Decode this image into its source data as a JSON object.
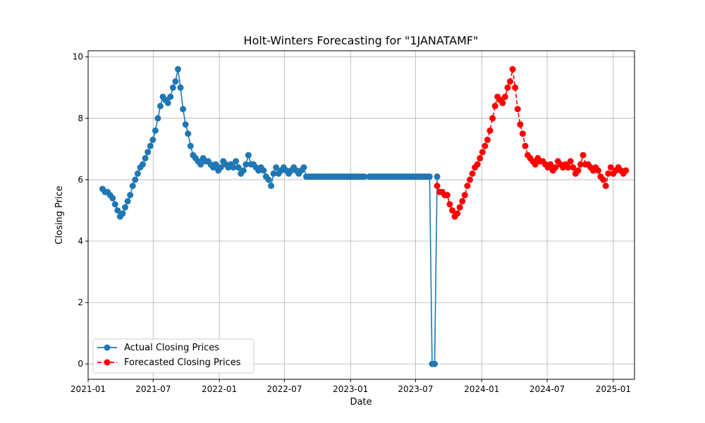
{
  "chart_data": {
    "type": "line",
    "title": "Holt-Winters Forecasting for \"1JANATAMF\"",
    "xlabel": "Date",
    "ylabel": "Closing Price",
    "xlim": [
      "2021-01-01",
      "2025-03-01"
    ],
    "ylim": [
      -0.5,
      10.2
    ],
    "x_ticks": [
      "2021-01-01",
      "2021-07-01",
      "2022-01-01",
      "2022-07-01",
      "2023-01-01",
      "2023-07-01",
      "2024-01-01",
      "2024-07-01",
      "2025-01-01"
    ],
    "x_tick_labels": [
      "2021-01",
      "2021-07",
      "2022-01",
      "2022-07",
      "2023-01",
      "2023-07",
      "2024-01",
      "2024-07",
      "2025-01"
    ],
    "y_ticks": [
      0,
      2,
      4,
      6,
      8,
      10
    ],
    "y_tick_labels": [
      "0",
      "2",
      "4",
      "6",
      "8",
      "10"
    ],
    "grid": true,
    "legend_position": "lower-left",
    "series": [
      {
        "name": "Actual Closing Prices",
        "color": "#1f77b4",
        "linestyle": "solid",
        "marker": "circle",
        "points": [
          [
            "2021-02-10",
            5.7
          ],
          [
            "2021-02-17",
            5.6
          ],
          [
            "2021-02-24",
            5.6
          ],
          [
            "2021-03-03",
            5.5
          ],
          [
            "2021-03-10",
            5.4
          ],
          [
            "2021-03-17",
            5.2
          ],
          [
            "2021-03-24",
            5.0
          ],
          [
            "2021-03-31",
            4.8
          ],
          [
            "2021-04-07",
            4.9
          ],
          [
            "2021-04-14",
            5.1
          ],
          [
            "2021-04-21",
            5.3
          ],
          [
            "2021-04-28",
            5.5
          ],
          [
            "2021-05-05",
            5.8
          ],
          [
            "2021-05-12",
            6.0
          ],
          [
            "2021-05-19",
            6.2
          ],
          [
            "2021-05-26",
            6.4
          ],
          [
            "2021-06-02",
            6.5
          ],
          [
            "2021-06-09",
            6.7
          ],
          [
            "2021-06-16",
            6.9
          ],
          [
            "2021-06-23",
            7.1
          ],
          [
            "2021-06-30",
            7.3
          ],
          [
            "2021-07-07",
            7.6
          ],
          [
            "2021-07-14",
            8.0
          ],
          [
            "2021-07-21",
            8.4
          ],
          [
            "2021-07-28",
            8.7
          ],
          [
            "2021-08-04",
            8.6
          ],
          [
            "2021-08-11",
            8.5
          ],
          [
            "2021-08-18",
            8.7
          ],
          [
            "2021-08-25",
            9.0
          ],
          [
            "2021-09-01",
            9.2
          ],
          [
            "2021-09-08",
            9.6
          ],
          [
            "2021-09-15",
            9.0
          ],
          [
            "2021-09-22",
            8.3
          ],
          [
            "2021-09-29",
            7.8
          ],
          [
            "2021-10-06",
            7.5
          ],
          [
            "2021-10-13",
            7.1
          ],
          [
            "2021-10-20",
            6.8
          ],
          [
            "2021-10-27",
            6.7
          ],
          [
            "2021-11-03",
            6.6
          ],
          [
            "2021-11-10",
            6.5
          ],
          [
            "2021-11-17",
            6.7
          ],
          [
            "2021-11-24",
            6.6
          ],
          [
            "2021-12-01",
            6.6
          ],
          [
            "2021-12-08",
            6.5
          ],
          [
            "2021-12-15",
            6.4
          ],
          [
            "2021-12-22",
            6.5
          ],
          [
            "2021-12-29",
            6.3
          ],
          [
            "2022-01-05",
            6.4
          ],
          [
            "2022-01-12",
            6.6
          ],
          [
            "2022-01-19",
            6.5
          ],
          [
            "2022-01-26",
            6.4
          ],
          [
            "2022-02-02",
            6.5
          ],
          [
            "2022-02-09",
            6.4
          ],
          [
            "2022-02-16",
            6.6
          ],
          [
            "2022-02-23",
            6.4
          ],
          [
            "2022-03-02",
            6.2
          ],
          [
            "2022-03-09",
            6.3
          ],
          [
            "2022-03-16",
            6.5
          ],
          [
            "2022-03-23",
            6.8
          ],
          [
            "2022-03-30",
            6.5
          ],
          [
            "2022-04-06",
            6.5
          ],
          [
            "2022-04-13",
            6.4
          ],
          [
            "2022-04-20",
            6.3
          ],
          [
            "2022-04-27",
            6.4
          ],
          [
            "2022-05-04",
            6.3
          ],
          [
            "2022-05-11",
            6.1
          ],
          [
            "2022-05-18",
            6.0
          ],
          [
            "2022-05-25",
            5.8
          ],
          [
            "2022-06-01",
            6.2
          ],
          [
            "2022-06-08",
            6.4
          ],
          [
            "2022-06-15",
            6.2
          ],
          [
            "2022-06-22",
            6.3
          ],
          [
            "2022-06-29",
            6.4
          ],
          [
            "2022-07-06",
            6.3
          ],
          [
            "2022-07-13",
            6.2
          ],
          [
            "2022-07-20",
            6.3
          ],
          [
            "2022-07-27",
            6.4
          ],
          [
            "2022-08-03",
            6.3
          ],
          [
            "2022-08-10",
            6.2
          ],
          [
            "2022-08-17",
            6.3
          ],
          [
            "2022-08-24",
            6.4
          ],
          [
            "2022-08-31",
            6.1
          ],
          [
            "2022-09-07",
            6.1
          ],
          [
            "2022-09-14",
            6.1
          ],
          [
            "2022-09-21",
            6.1
          ],
          [
            "2022-09-28",
            6.1
          ],
          [
            "2022-10-05",
            6.1
          ],
          [
            "2022-10-12",
            6.1
          ],
          [
            "2022-10-19",
            6.1
          ],
          [
            "2022-10-26",
            6.1
          ],
          [
            "2022-11-02",
            6.1
          ],
          [
            "2022-11-09",
            6.1
          ],
          [
            "2022-11-16",
            6.1
          ],
          [
            "2022-11-23",
            6.1
          ],
          [
            "2022-11-30",
            6.1
          ],
          [
            "2022-12-07",
            6.1
          ],
          [
            "2022-12-14",
            6.1
          ],
          [
            "2022-12-21",
            6.1
          ],
          [
            "2022-12-28",
            6.1
          ],
          [
            "2023-01-04",
            6.1
          ],
          [
            "2023-01-11",
            6.1
          ],
          [
            "2023-01-18",
            6.1
          ],
          [
            "2023-01-25",
            6.1
          ],
          [
            "2023-02-01",
            6.1
          ],
          [
            "2023-02-08",
            6.1
          ],
          [
            "2023-02-22",
            6.1
          ],
          [
            "2023-03-01",
            6.1
          ],
          [
            "2023-03-08",
            6.1
          ],
          [
            "2023-03-15",
            6.1
          ],
          [
            "2023-03-22",
            6.1
          ],
          [
            "2023-03-29",
            6.1
          ],
          [
            "2023-04-05",
            6.1
          ],
          [
            "2023-04-12",
            6.1
          ],
          [
            "2023-04-19",
            6.1
          ],
          [
            "2023-04-26",
            6.1
          ],
          [
            "2023-05-03",
            6.1
          ],
          [
            "2023-05-10",
            6.1
          ],
          [
            "2023-05-17",
            6.1
          ],
          [
            "2023-05-24",
            6.1
          ],
          [
            "2023-05-31",
            6.1
          ],
          [
            "2023-06-07",
            6.1
          ],
          [
            "2023-06-14",
            6.1
          ],
          [
            "2023-06-21",
            6.1
          ],
          [
            "2023-06-28",
            6.1
          ],
          [
            "2023-07-05",
            6.1
          ],
          [
            "2023-07-12",
            6.1
          ],
          [
            "2023-07-19",
            6.1
          ],
          [
            "2023-07-26",
            6.1
          ],
          [
            "2023-08-02",
            6.1
          ],
          [
            "2023-08-09",
            6.1
          ],
          [
            "2023-08-16",
            0.0
          ],
          [
            "2023-08-23",
            0.0
          ],
          [
            "2023-08-30",
            6.1
          ]
        ]
      },
      {
        "name": "Forecasted Closing Prices",
        "color": "#ff0000",
        "linestyle": "dashed",
        "marker": "circle",
        "points": [
          [
            "2023-08-30",
            5.8
          ],
          [
            "2023-09-06",
            5.6
          ],
          [
            "2023-09-13",
            5.6
          ],
          [
            "2023-09-20",
            5.5
          ],
          [
            "2023-09-27",
            5.5
          ],
          [
            "2023-10-04",
            5.2
          ],
          [
            "2023-10-11",
            5.0
          ],
          [
            "2023-10-18",
            4.8
          ],
          [
            "2023-10-25",
            4.9
          ],
          [
            "2023-11-01",
            5.1
          ],
          [
            "2023-11-08",
            5.3
          ],
          [
            "2023-11-15",
            5.5
          ],
          [
            "2023-11-22",
            5.8
          ],
          [
            "2023-11-29",
            6.0
          ],
          [
            "2023-12-06",
            6.2
          ],
          [
            "2023-12-13",
            6.4
          ],
          [
            "2023-12-20",
            6.5
          ],
          [
            "2023-12-27",
            6.7
          ],
          [
            "2024-01-03",
            6.9
          ],
          [
            "2024-01-10",
            7.1
          ],
          [
            "2024-01-17",
            7.3
          ],
          [
            "2024-01-24",
            7.6
          ],
          [
            "2024-01-31",
            8.0
          ],
          [
            "2024-02-07",
            8.4
          ],
          [
            "2024-02-14",
            8.7
          ],
          [
            "2024-02-21",
            8.6
          ],
          [
            "2024-02-28",
            8.5
          ],
          [
            "2024-03-06",
            8.7
          ],
          [
            "2024-03-13",
            9.0
          ],
          [
            "2024-03-20",
            9.2
          ],
          [
            "2024-03-27",
            9.6
          ],
          [
            "2024-04-03",
            9.0
          ],
          [
            "2024-04-10",
            8.3
          ],
          [
            "2024-04-17",
            7.8
          ],
          [
            "2024-04-24",
            7.5
          ],
          [
            "2024-05-01",
            7.1
          ],
          [
            "2024-05-08",
            6.8
          ],
          [
            "2024-05-15",
            6.7
          ],
          [
            "2024-05-22",
            6.6
          ],
          [
            "2024-05-29",
            6.5
          ],
          [
            "2024-06-05",
            6.7
          ],
          [
            "2024-06-12",
            6.6
          ],
          [
            "2024-06-19",
            6.6
          ],
          [
            "2024-06-26",
            6.5
          ],
          [
            "2024-07-03",
            6.4
          ],
          [
            "2024-07-10",
            6.5
          ],
          [
            "2024-07-17",
            6.3
          ],
          [
            "2024-07-24",
            6.4
          ],
          [
            "2024-07-31",
            6.6
          ],
          [
            "2024-08-07",
            6.5
          ],
          [
            "2024-08-14",
            6.4
          ],
          [
            "2024-08-21",
            6.5
          ],
          [
            "2024-08-28",
            6.4
          ],
          [
            "2024-09-04",
            6.6
          ],
          [
            "2024-09-11",
            6.4
          ],
          [
            "2024-09-18",
            6.2
          ],
          [
            "2024-09-25",
            6.3
          ],
          [
            "2024-10-02",
            6.5
          ],
          [
            "2024-10-09",
            6.8
          ],
          [
            "2024-10-16",
            6.5
          ],
          [
            "2024-10-23",
            6.5
          ],
          [
            "2024-10-30",
            6.4
          ],
          [
            "2024-11-06",
            6.3
          ],
          [
            "2024-11-13",
            6.4
          ],
          [
            "2024-11-20",
            6.3
          ],
          [
            "2024-11-27",
            6.1
          ],
          [
            "2024-12-04",
            6.0
          ],
          [
            "2024-12-11",
            5.8
          ],
          [
            "2024-12-18",
            6.2
          ],
          [
            "2024-12-25",
            6.4
          ],
          [
            "2025-01-01",
            6.2
          ],
          [
            "2025-01-08",
            6.3
          ],
          [
            "2025-01-15",
            6.4
          ],
          [
            "2025-01-22",
            6.3
          ],
          [
            "2025-01-29",
            6.2
          ],
          [
            "2025-02-05",
            6.3
          ]
        ]
      }
    ]
  }
}
